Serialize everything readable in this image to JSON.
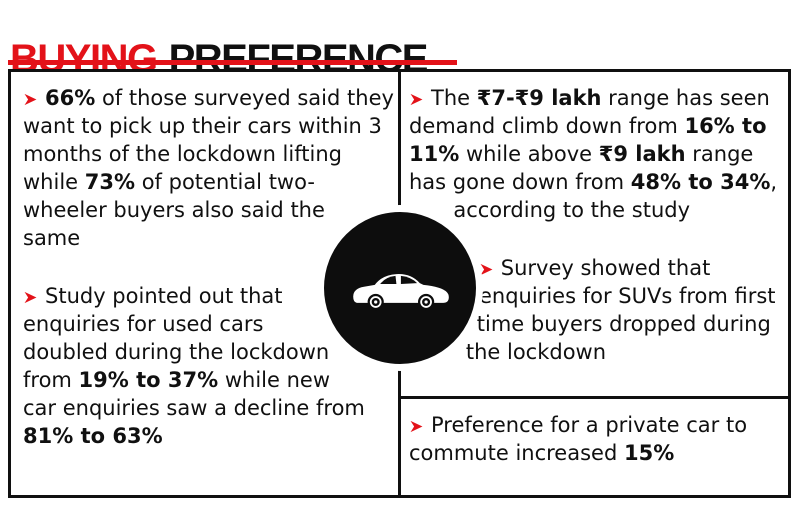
{
  "title": {
    "highlight": "BUYING",
    "rest": "PREFERENCE"
  },
  "colors": {
    "accent": "#e31219",
    "ink": "#101010",
    "paper": "#ffffff"
  },
  "icons": {
    "bullet": {
      "name": "arrow-bullet-icon",
      "glyph": "➤"
    },
    "badge": {
      "name": "car-icon"
    }
  },
  "columns": {
    "left": [
      {
        "segments": [
          {
            "text": "66%",
            "bold": true
          },
          {
            "text": " of those surveyed said they want to pick up their cars within 3 months of the lockdown lifting while ",
            "bold": false
          },
          {
            "text": "73%",
            "bold": true
          },
          {
            "text": " of potential two-wheeler buyers also said the same",
            "bold": false
          }
        ]
      },
      {
        "segments": [
          {
            "text": "Study pointed out that enquiries for used cars doubled during the lockdown from ",
            "bold": false
          },
          {
            "text": "19% to 37%",
            "bold": true
          },
          {
            "text": " while new car enquiries saw a decline from ",
            "bold": false
          },
          {
            "text": "81% to 63%",
            "bold": true
          }
        ]
      }
    ],
    "right": [
      {
        "segments": [
          {
            "text": "The ",
            "bold": false
          },
          {
            "text": "₹7-₹9 lakh",
            "bold": true
          },
          {
            "text": " range has seen demand climb down from ",
            "bold": false
          },
          {
            "text": "16% to 11%",
            "bold": true
          },
          {
            "text": " while above ",
            "bold": false
          },
          {
            "text": "₹9 lakh",
            "bold": true
          },
          {
            "text": " range has gone down from ",
            "bold": false
          },
          {
            "text": "48% to 34%",
            "bold": true
          },
          {
            "text": ", according to the study",
            "bold": false
          }
        ]
      },
      {
        "segments": [
          {
            "text": "Survey showed that enquiries for SUVs from first time buyers dropped during the lockdown",
            "bold": false
          }
        ]
      },
      {
        "divider_above": true,
        "segments": [
          {
            "text": "Preference for a private car to commute increased ",
            "bold": false
          },
          {
            "text": "15%",
            "bold": true
          }
        ]
      }
    ]
  }
}
